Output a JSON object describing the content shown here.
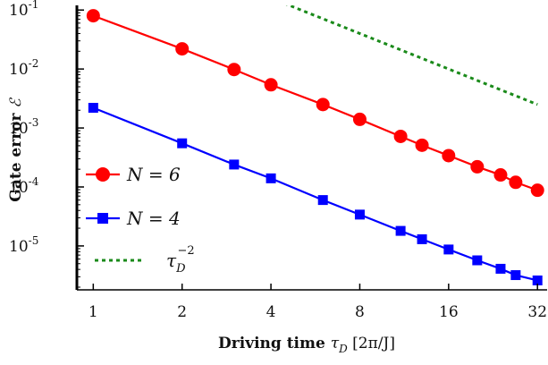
{
  "chart_data": {
    "type": "scatter",
    "xscale": "log2",
    "yscale": "log10",
    "xlim": [
      0.88,
      34.5
    ],
    "ylim": [
      1.8e-06,
      0.12
    ],
    "xticks": [
      1,
      2,
      4,
      8,
      16,
      32
    ],
    "xtick_labels": [
      "1",
      "2",
      "4",
      "8",
      "16",
      "32"
    ],
    "yticks": [
      0.1,
      0.01,
      0.001,
      0.0001,
      1e-05
    ],
    "ytick_labels": [
      {
        "base": "10",
        "exp": "-1"
      },
      {
        "base": "10",
        "exp": "-2"
      },
      {
        "base": "10",
        "exp": "-3"
      },
      {
        "base": "10",
        "exp": "-4"
      },
      {
        "base": "10",
        "exp": "-5"
      }
    ],
    "xlabel": {
      "bold": "Driving time",
      "symbol": "τ",
      "sub": "D",
      "unit": "[2π/J]"
    },
    "ylabel": {
      "bold": "Gate error",
      "symbol": "ℰ"
    },
    "grid": false,
    "legend_position": "left",
    "series": [
      {
        "name": "N = 6",
        "color": "#ff0000",
        "marker": "circle",
        "x": [
          1,
          2,
          3,
          4,
          6,
          8,
          11,
          13,
          16,
          20,
          24,
          27,
          32
        ],
        "y": [
          0.08,
          0.022,
          0.0098,
          0.0054,
          0.0025,
          0.0014,
          0.00072,
          0.00051,
          0.00034,
          0.00022,
          0.00016,
          0.00012,
          8.8e-05
        ]
      },
      {
        "name": "N = 4",
        "color": "#0000ff",
        "marker": "square",
        "x": [
          1,
          2,
          3,
          4,
          6,
          8,
          11,
          13,
          16,
          20,
          24,
          27,
          32
        ],
        "y": [
          0.0022,
          0.00055,
          0.00024,
          0.00014,
          6e-05,
          3.4e-05,
          1.8e-05,
          1.3e-05,
          8.7e-06,
          5.7e-06,
          4.1e-06,
          3.2e-06,
          2.6e-06
        ]
      },
      {
        "name": "τ_D^-2",
        "color": "#1a8a1a",
        "style": "dotted",
        "x": [
          4,
          32
        ],
        "y": [
          0.16,
          0.0025
        ]
      }
    ],
    "legend": [
      {
        "kind": "circle",
        "color": "#ff0000",
        "label_base": "N = 6",
        "label_sub": "",
        "label_sup": ""
      },
      {
        "kind": "square",
        "color": "#0000ff",
        "label_base": "N = 4",
        "label_sub": "",
        "label_sup": ""
      },
      {
        "kind": "dotted",
        "color": "#1a8a1a",
        "label_base": "τ",
        "label_sub": "D",
        "label_sup": "−2"
      }
    ]
  }
}
